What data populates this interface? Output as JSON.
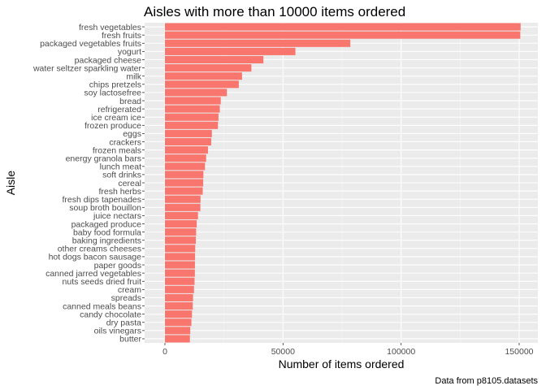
{
  "chart_data": {
    "type": "bar",
    "orientation": "horizontal",
    "title": "Aisles with more than 10000 items ordered",
    "xlabel": "Number of items ordered",
    "ylabel": "Aisle",
    "caption": "Data from p8105.datasets",
    "xlim": [
      0,
      157000
    ],
    "xticks": [
      0,
      50000,
      100000,
      150000
    ],
    "xtick_labels": [
      "0",
      "50000",
      "100000",
      "150000"
    ],
    "categories": [
      "fresh vegetables",
      "fresh fruits",
      "packaged vegetables fruits",
      "yogurt",
      "packaged cheese",
      "water seltzer sparkling water",
      "milk",
      "chips pretzels",
      "soy lactosefree",
      "bread",
      "refrigerated",
      "ice cream ice",
      "frozen produce",
      "eggs",
      "crackers",
      "frozen meals",
      "energy granola bars",
      "lunch meat",
      "soft drinks",
      "cereal",
      "fresh herbs",
      "fresh dips tapenades",
      "soup broth bouillon",
      "juice nectars",
      "packaged produce",
      "baby food formula",
      "baking ingredients",
      "other creams cheeses",
      "hot dogs bacon sausage",
      "paper goods",
      "canned jarred vegetables",
      "nuts seeds dried fruit",
      "cream",
      "spreads",
      "canned meals beans",
      "candy chocolate",
      "dry pasta",
      "oils vinegars",
      "butter"
    ],
    "values": [
      150609,
      150473,
      78493,
      55240,
      41699,
      36617,
      32644,
      31269,
      26240,
      23635,
      23228,
      22676,
      22453,
      19875,
      19592,
      18221,
      17449,
      16957,
      16279,
      16201,
      16000,
      15069,
      15000,
      14000,
      13460,
      13198,
      13088,
      12820,
      12750,
      12707,
      12679,
      12532,
      12300,
      11900,
      11774,
      11453,
      11200,
      10720,
      10575
    ],
    "bar_color": "#F8766D",
    "panel_color": "#EBEBEB",
    "grid": true,
    "legend": "none"
  }
}
